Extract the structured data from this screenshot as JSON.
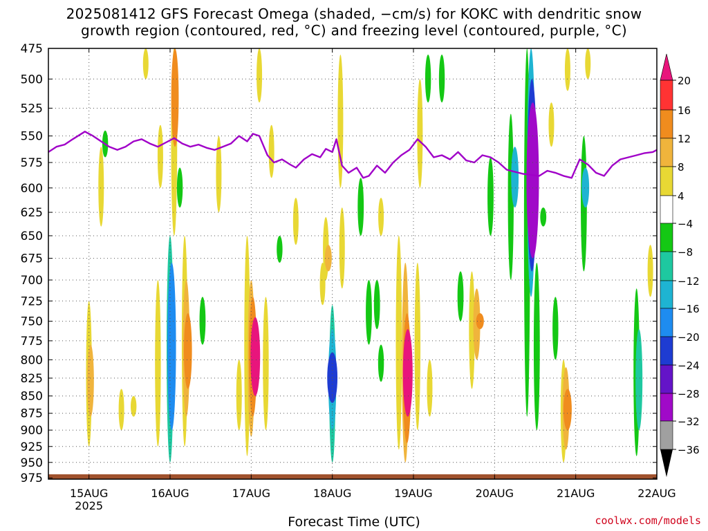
{
  "title": {
    "line1": "2025081412 GFS Forecast Omega (shaded, −cm/s) for KOKC with dendritic snow",
    "line2": "growth region (contoured, red, °C) and freezing level (contoured, purple, °C)"
  },
  "credit": "coolwx.com/models",
  "chart_data": {
    "type": "heatmap",
    "xlabel": "Forecast Time (UTC)",
    "x_ticks": [
      "15AUG",
      "16AUG",
      "17AUG",
      "18AUG",
      "19AUG",
      "20AUG",
      "21AUG",
      "22AUG"
    ],
    "x_year_label": "2025",
    "x_range_days": [
      14.5,
      22.0
    ],
    "y_ticks": [
      475,
      500,
      525,
      550,
      575,
      600,
      625,
      650,
      675,
      700,
      725,
      750,
      775,
      800,
      825,
      850,
      875,
      900,
      925,
      950,
      975
    ],
    "y_range": [
      475,
      977
    ],
    "y_axis_reversed": true,
    "grid": true,
    "colorbar": {
      "labels": [
        "20",
        "16",
        "12",
        "8",
        "4",
        "−4",
        "−8",
        "−12",
        "−16",
        "−20",
        "−24",
        "−28",
        "−32",
        "−36"
      ],
      "levels": [
        20,
        16,
        12,
        8,
        4,
        -4,
        -8,
        -12,
        -16,
        -20,
        -24,
        -28,
        -32,
        -36
      ],
      "colors": [
        "#f03c6e",
        "#ff3333",
        "#f08c1e",
        "#f0b43c",
        "#e8d834",
        "#ffffff",
        "#14c814",
        "#1ec8a0",
        "#1eb4d2",
        "#1e8cf0",
        "#1e3cd2",
        "#6414c8",
        "#a00ac8",
        "#a0a0a0",
        "#000000"
      ],
      "top_color": "#e8157c",
      "bottom_color": "#000000"
    },
    "freezing_level": {
      "color": "#a000c8",
      "x_days": [
        14.5,
        14.6,
        14.7,
        14.8,
        14.95,
        15.05,
        15.15,
        15.25,
        15.35,
        15.45,
        15.55,
        15.65,
        15.75,
        15.85,
        15.95,
        16.05,
        16.15,
        16.25,
        16.35,
        16.45,
        16.55,
        16.65,
        16.75,
        16.85,
        16.95,
        17.02,
        17.1,
        17.2,
        17.28,
        17.38,
        17.48,
        17.55,
        17.65,
        17.75,
        17.85,
        17.92,
        18.0,
        18.05,
        18.12,
        18.2,
        18.3,
        18.38,
        18.45,
        18.55,
        18.65,
        18.75,
        18.85,
        18.95,
        19.05,
        19.15,
        19.25,
        19.35,
        19.45,
        19.55,
        19.65,
        19.75,
        19.85,
        19.95,
        20.05,
        20.15,
        20.25,
        20.35,
        20.45,
        20.55,
        20.65,
        20.75,
        20.85,
        20.95,
        21.05,
        21.15,
        21.25,
        21.35,
        21.45,
        21.55,
        21.65,
        21.75,
        21.85,
        21.95,
        22.0
      ],
      "pressure": [
        565,
        560,
        558,
        553,
        546,
        550,
        555,
        560,
        563,
        560,
        555,
        553,
        557,
        560,
        556,
        552,
        557,
        560,
        558,
        561,
        563,
        560,
        557,
        550,
        555,
        548,
        550,
        568,
        575,
        572,
        577,
        580,
        572,
        567,
        570,
        562,
        565,
        553,
        578,
        585,
        580,
        590,
        588,
        578,
        585,
        575,
        568,
        563,
        553,
        560,
        570,
        568,
        572,
        565,
        573,
        575,
        568,
        570,
        575,
        582,
        584,
        586,
        587,
        588,
        583,
        585,
        588,
        590,
        572,
        577,
        585,
        588,
        578,
        572,
        570,
        568,
        566,
        565,
        563
      ]
    },
    "dendritic_growth_region": {
      "color": "#ff0000",
      "present": false
    },
    "omega_features": [
      {
        "d": 15.0,
        "p1": 725,
        "p2": 925,
        "v": 6
      },
      {
        "d": 15.02,
        "p1": 780,
        "p2": 880,
        "v": 9
      },
      {
        "d": 15.15,
        "p1": 560,
        "p2": 640,
        "v": 5
      },
      {
        "d": 15.2,
        "p1": 545,
        "p2": 570,
        "v": -6
      },
      {
        "d": 15.4,
        "p1": 840,
        "p2": 900,
        "v": 5
      },
      {
        "d": 15.55,
        "p1": 850,
        "p2": 880,
        "v": 6
      },
      {
        "d": 15.7,
        "p1": 475,
        "p2": 500,
        "v": 5
      },
      {
        "d": 15.85,
        "p1": 700,
        "p2": 925,
        "v": 6
      },
      {
        "d": 15.88,
        "p1": 540,
        "p2": 600,
        "v": 5
      },
      {
        "d": 16.0,
        "p1": 650,
        "p2": 950,
        "v": -10
      },
      {
        "d": 16.02,
        "p1": 680,
        "p2": 900,
        "v": -16
      },
      {
        "d": 16.05,
        "p1": 475,
        "p2": 650,
        "v": 7
      },
      {
        "d": 16.06,
        "p1": 475,
        "p2": 560,
        "v": 12
      },
      {
        "d": 16.12,
        "p1": 580,
        "p2": 620,
        "v": -6
      },
      {
        "d": 16.18,
        "p1": 650,
        "p2": 925,
        "v": 6
      },
      {
        "d": 16.2,
        "p1": 700,
        "p2": 880,
        "v": 10
      },
      {
        "d": 16.22,
        "p1": 740,
        "p2": 840,
        "v": 14
      },
      {
        "d": 16.4,
        "p1": 720,
        "p2": 780,
        "v": -7
      },
      {
        "d": 16.6,
        "p1": 550,
        "p2": 625,
        "v": 5
      },
      {
        "d": 16.85,
        "p1": 800,
        "p2": 900,
        "v": 5
      },
      {
        "d": 16.95,
        "p1": 650,
        "p2": 940,
        "v": 6
      },
      {
        "d": 17.0,
        "p1": 700,
        "p2": 910,
        "v": 10
      },
      {
        "d": 17.02,
        "p1": 720,
        "p2": 880,
        "v": 14
      },
      {
        "d": 17.05,
        "p1": 745,
        "p2": 850,
        "v": 20
      },
      {
        "d": 17.1,
        "p1": 475,
        "p2": 520,
        "v": 5
      },
      {
        "d": 17.18,
        "p1": 720,
        "p2": 900,
        "v": 6
      },
      {
        "d": 17.25,
        "p1": 540,
        "p2": 590,
        "v": 5
      },
      {
        "d": 17.35,
        "p1": 650,
        "p2": 680,
        "v": -6
      },
      {
        "d": 17.55,
        "p1": 610,
        "p2": 660,
        "v": 5
      },
      {
        "d": 17.92,
        "p1": 630,
        "p2": 700,
        "v": 6
      },
      {
        "d": 17.95,
        "p1": 660,
        "p2": 690,
        "v": 10
      },
      {
        "d": 17.88,
        "p1": 680,
        "p2": 730,
        "v": 5
      },
      {
        "d": 18.0,
        "p1": 730,
        "p2": 950,
        "v": -8
      },
      {
        "d": 18.0,
        "p1": 760,
        "p2": 900,
        "v": -14
      },
      {
        "d": 18.0,
        "p1": 790,
        "p2": 860,
        "v": -22
      },
      {
        "d": 18.1,
        "p1": 480,
        "p2": 600,
        "v": 5
      },
      {
        "d": 18.12,
        "p1": 620,
        "p2": 710,
        "v": 5
      },
      {
        "d": 18.35,
        "p1": 590,
        "p2": 650,
        "v": -7
      },
      {
        "d": 18.45,
        "p1": 700,
        "p2": 780,
        "v": -7
      },
      {
        "d": 18.55,
        "p1": 700,
        "p2": 760,
        "v": -7
      },
      {
        "d": 18.6,
        "p1": 610,
        "p2": 650,
        "v": 5
      },
      {
        "d": 18.6,
        "p1": 780,
        "p2": 830,
        "v": -6
      },
      {
        "d": 18.82,
        "p1": 650,
        "p2": 930,
        "v": 7
      },
      {
        "d": 18.9,
        "p1": 680,
        "p2": 950,
        "v": 10
      },
      {
        "d": 18.92,
        "p1": 740,
        "p2": 920,
        "v": 14
      },
      {
        "d": 18.93,
        "p1": 760,
        "p2": 880,
        "v": 20
      },
      {
        "d": 19.05,
        "p1": 680,
        "p2": 900,
        "v": 6
      },
      {
        "d": 19.08,
        "p1": 500,
        "p2": 600,
        "v": 5
      },
      {
        "d": 19.18,
        "p1": 480,
        "p2": 520,
        "v": -6
      },
      {
        "d": 19.2,
        "p1": 800,
        "p2": 880,
        "v": 5
      },
      {
        "d": 19.35,
        "p1": 480,
        "p2": 520,
        "v": -6
      },
      {
        "d": 19.72,
        "p1": 690,
        "p2": 840,
        "v": 6
      },
      {
        "d": 19.78,
        "p1": 710,
        "p2": 800,
        "v": 10
      },
      {
        "d": 19.82,
        "p1": 740,
        "p2": 760,
        "v": 13
      },
      {
        "d": 19.58,
        "p1": 690,
        "p2": 750,
        "v": -7
      },
      {
        "d": 19.95,
        "p1": 570,
        "p2": 650,
        "v": -7
      },
      {
        "d": 20.2,
        "p1": 530,
        "p2": 700,
        "v": -6
      },
      {
        "d": 20.25,
        "p1": 560,
        "p2": 620,
        "v": -12
      },
      {
        "d": 20.4,
        "p1": 475,
        "p2": 880,
        "v": -7
      },
      {
        "d": 20.45,
        "p1": 475,
        "p2": 720,
        "v": -14
      },
      {
        "d": 20.46,
        "p1": 500,
        "p2": 690,
        "v": -20
      },
      {
        "d": 20.47,
        "p1": 520,
        "p2": 675,
        "v": -30
      },
      {
        "d": 20.52,
        "p1": 680,
        "p2": 900,
        "v": -7
      },
      {
        "d": 20.6,
        "p1": 620,
        "p2": 640,
        "v": -7
      },
      {
        "d": 20.75,
        "p1": 720,
        "p2": 800,
        "v": -6
      },
      {
        "d": 20.85,
        "p1": 800,
        "p2": 950,
        "v": 6
      },
      {
        "d": 20.88,
        "p1": 810,
        "p2": 930,
        "v": 10
      },
      {
        "d": 20.9,
        "p1": 840,
        "p2": 900,
        "v": 15
      },
      {
        "d": 20.7,
        "p1": 520,
        "p2": 560,
        "v": 5
      },
      {
        "d": 20.9,
        "p1": 475,
        "p2": 510,
        "v": 5
      },
      {
        "d": 21.1,
        "p1": 550,
        "p2": 690,
        "v": -7
      },
      {
        "d": 21.12,
        "p1": 580,
        "p2": 620,
        "v": -12
      },
      {
        "d": 21.15,
        "p1": 475,
        "p2": 500,
        "v": 5
      },
      {
        "d": 21.75,
        "p1": 710,
        "p2": 940,
        "v": -7
      },
      {
        "d": 21.78,
        "p1": 760,
        "p2": 900,
        "v": -10
      },
      {
        "d": 21.92,
        "p1": 660,
        "p2": 720,
        "v": 5
      }
    ]
  }
}
